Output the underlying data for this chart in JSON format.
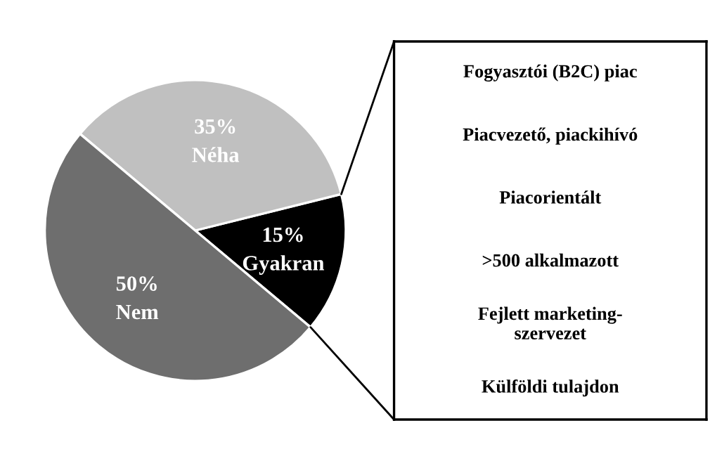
{
  "chart_data": [
    {
      "type": "pie",
      "categories": [
        "Gyakran",
        "Néha",
        "Nem"
      ],
      "values": [
        15,
        35,
        50
      ],
      "value_labels": [
        "15%",
        "35%",
        "50%"
      ],
      "colors": [
        "#000000",
        "#c0c0c0",
        "#6e6e6e"
      ]
    },
    {
      "type": "other",
      "annotations": [
        "Fogyasztói (B2C) piac",
        "Piacvezető, piackihívó",
        "Piacorientált",
        ">500 alkalmazott",
        "Fejlett marketing-\nszervezet",
        "Külföldi tulajdon"
      ]
    }
  ]
}
